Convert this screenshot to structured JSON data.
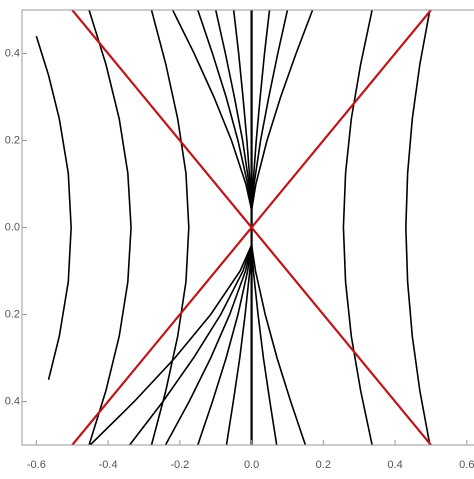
{
  "chart_data": {
    "type": "line",
    "xlim": [
      -0.64,
      0.62
    ],
    "ylim": [
      -0.5,
      0.5
    ],
    "xticks": [
      -0.6,
      -0.4,
      -0.2,
      {
        "value": 0,
        "label": "0.0"
      },
      0.2,
      0.4,
      0.6
    ],
    "yticks": [
      {
        "value": -0.4,
        "label": "0.4"
      },
      {
        "value": -0.2,
        "label": "0.2"
      },
      {
        "value": 0,
        "label": "0.0"
      },
      0.2,
      0.4
    ],
    "series": [
      {
        "color": "#000000",
        "x": [
          -0.566,
          -0.536,
          -0.511,
          -0.503,
          -0.511,
          -0.536,
          -0.566,
          -0.6
        ],
        "values": [
          -0.35,
          -0.25,
          -0.125,
          0,
          0.125,
          0.25,
          0.35,
          0.44
        ]
      },
      {
        "color": "#000000",
        "x": [
          -0.453,
          -0.406,
          -0.369,
          -0.345,
          -0.336,
          -0.345,
          -0.369,
          -0.406,
          -0.453
        ],
        "values": [
          -0.5,
          -0.375,
          -0.25,
          -0.125,
          0,
          0.125,
          0.25,
          0.375,
          0.5
        ]
      },
      {
        "color": "#000000",
        "x": [
          -0.279,
          -0.239,
          -0.206,
          -0.183,
          -0.175,
          -0.183,
          -0.206,
          -0.239,
          -0.279
        ],
        "values": [
          -0.5,
          -0.375,
          -0.25,
          -0.125,
          0,
          0.125,
          0.25,
          0.375,
          0.5
        ]
      },
      {
        "color": "#000000",
        "x": [
          0.336,
          0.304,
          0.278,
          0.262,
          0.256,
          0.262,
          0.278,
          0.304,
          0.336
        ],
        "values": [
          -0.5,
          -0.375,
          -0.25,
          -0.125,
          0,
          0.125,
          0.25,
          0.375,
          0.5
        ]
      },
      {
        "color": "#000000",
        "x": [
          0.497,
          0.469,
          0.448,
          0.435,
          0.43,
          0.435,
          0.448,
          0.469,
          0.497
        ],
        "values": [
          -0.5,
          -0.375,
          -0.25,
          -0.125,
          0,
          0.125,
          0.25,
          0.375,
          0.5
        ]
      },
      {
        "color": "#000000",
        "x": [
          0,
          -0.016,
          -0.056,
          -0.105,
          -0.16,
          -0.22
        ],
        "values": [
          0.04,
          0.1,
          0.2,
          0.3,
          0.4,
          0.5
        ]
      },
      {
        "color": "#000000",
        "x": [
          0,
          -0.011,
          -0.038,
          -0.071,
          -0.109,
          -0.15
        ],
        "values": [
          0.04,
          0.1,
          0.2,
          0.3,
          0.4,
          0.5
        ]
      },
      {
        "color": "#000000",
        "x": [
          0,
          -0.007,
          -0.025,
          -0.048,
          -0.073,
          -0.1
        ],
        "values": [
          0.04,
          0.1,
          0.2,
          0.3,
          0.4,
          0.5
        ]
      },
      {
        "color": "#000000",
        "x": [
          0,
          -0.004,
          -0.013,
          -0.024,
          -0.036,
          -0.05
        ],
        "values": [
          0.04,
          0.1,
          0.2,
          0.3,
          0.4,
          0.5
        ]
      },
      {
        "color": "#000000",
        "x": [
          0,
          0.004,
          0.013,
          0.024,
          0.036,
          0.05
        ],
        "values": [
          0.04,
          0.1,
          0.2,
          0.3,
          0.4,
          0.5
        ]
      },
      {
        "color": "#000000",
        "x": [
          0,
          0.007,
          0.025,
          0.048,
          0.073,
          0.1
        ],
        "values": [
          0.04,
          0.1,
          0.2,
          0.3,
          0.4,
          0.5
        ]
      },
      {
        "color": "#000000",
        "x": [
          0,
          0.012,
          0.043,
          0.081,
          0.124,
          0.17
        ],
        "values": [
          0.04,
          0.1,
          0.2,
          0.3,
          0.4,
          0.5
        ]
      },
      {
        "color": "#000000",
        "x": [
          0,
          -0.032,
          -0.114,
          -0.214,
          -0.327,
          -0.45
        ],
        "values": [
          -0.04,
          -0.1,
          -0.2,
          -0.3,
          -0.4,
          -0.5
        ]
      },
      {
        "color": "#000000",
        "x": [
          0,
          -0.024,
          -0.086,
          -0.162,
          -0.247,
          -0.34
        ],
        "values": [
          -0.04,
          -0.1,
          -0.2,
          -0.3,
          -0.4,
          -0.5
        ]
      },
      {
        "color": "#000000",
        "x": [
          0,
          -0.017,
          -0.061,
          -0.114,
          -0.174,
          -0.24
        ],
        "values": [
          -0.04,
          -0.1,
          -0.2,
          -0.3,
          -0.4,
          -0.5
        ]
      },
      {
        "color": "#000000",
        "x": [
          0,
          -0.011,
          -0.038,
          -0.071,
          -0.109,
          -0.15
        ],
        "values": [
          -0.04,
          -0.1,
          -0.2,
          -0.3,
          -0.4,
          -0.5
        ]
      },
      {
        "color": "#000000",
        "x": [
          0,
          -0.005,
          -0.018,
          -0.033,
          -0.051,
          -0.07
        ],
        "values": [
          -0.04,
          -0.1,
          -0.2,
          -0.3,
          -0.4,
          -0.5
        ]
      },
      {
        "color": "#000000",
        "x": [
          0,
          0.005,
          0.018,
          0.033,
          0.051,
          0.07
        ],
        "values": [
          -0.04,
          -0.1,
          -0.2,
          -0.3,
          -0.4,
          -0.5
        ]
      },
      {
        "color": "#000000",
        "x": [
          0,
          0.011,
          0.038,
          0.071,
          0.109,
          0.15
        ],
        "values": [
          -0.04,
          -0.1,
          -0.2,
          -0.3,
          -0.4,
          -0.5
        ]
      },
      {
        "color": "#000000",
        "x": [
          0,
          0
        ],
        "values": [
          -0.5,
          0.5
        ]
      },
      {
        "color": "#c0141a",
        "x": [
          -0.5,
          0.5
        ],
        "values": [
          0.5,
          -0.5
        ]
      },
      {
        "color": "#c0141a",
        "x": [
          -0.5,
          0.5
        ],
        "values": [
          -0.5,
          0.5
        ]
      }
    ]
  }
}
